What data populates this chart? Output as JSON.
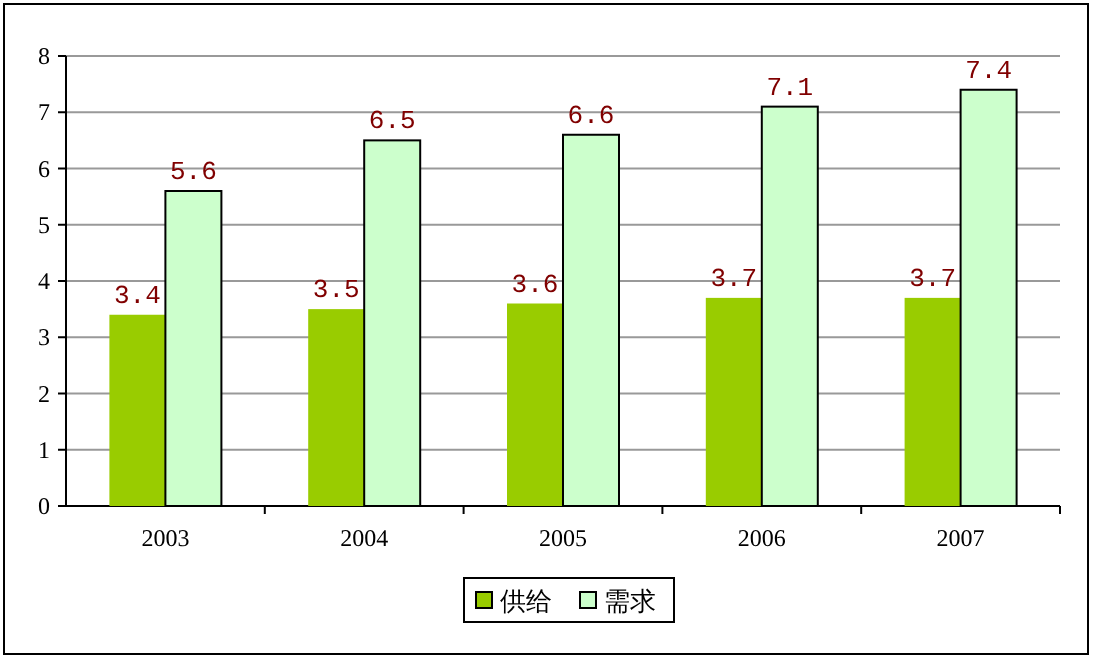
{
  "chart_data": {
    "type": "bar",
    "categories": [
      "2003",
      "2004",
      "2005",
      "2006",
      "2007"
    ],
    "series": [
      {
        "name": "供给",
        "color": "#99cc00",
        "values": [
          3.4,
          3.5,
          3.6,
          3.7,
          3.7
        ]
      },
      {
        "name": "需求",
        "color": "#ccffcc",
        "values": [
          5.6,
          6.5,
          6.6,
          7.1,
          7.4
        ]
      }
    ],
    "ylim": [
      0,
      8
    ],
    "yticks": [
      0,
      1,
      2,
      3,
      4,
      5,
      6,
      7,
      8
    ],
    "grid": "y",
    "legend": "bottom",
    "data_labels": true
  }
}
